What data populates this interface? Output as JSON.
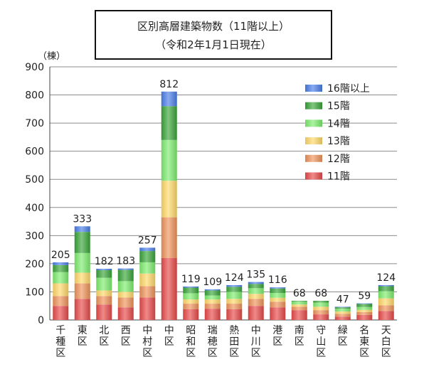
{
  "chart_data": {
    "type": "bar",
    "stacked": true,
    "title": "区別高層建築物数（11階以上）",
    "subtitle": "（令和2年1月1日現在）",
    "ylabel": "（棟）",
    "ylim": [
      0,
      900
    ],
    "yticks": [
      0,
      100,
      200,
      300,
      400,
      500,
      600,
      700,
      800,
      900
    ],
    "grid": true,
    "legend_position": "top-right",
    "categories": [
      "千種区",
      "東区",
      "北区",
      "西区",
      "中村区",
      "中区",
      "昭和区",
      "瑞穂区",
      "熱田区",
      "中川区",
      "港区",
      "南区",
      "守山区",
      "緑区",
      "名東区",
      "天白区"
    ],
    "totals": [
      205,
      333,
      182,
      183,
      257,
      812,
      119,
      109,
      124,
      135,
      116,
      68,
      68,
      47,
      59,
      124
    ],
    "series": [
      {
        "name": "11階",
        "color": "#e84a4a",
        "values": [
          50,
          75,
          55,
          45,
          80,
          220,
          38,
          40,
          38,
          50,
          45,
          35,
          20,
          12,
          18,
          32
        ]
      },
      {
        "name": "12階",
        "color": "#ef935a",
        "values": [
          35,
          55,
          30,
          35,
          40,
          145,
          20,
          18,
          20,
          25,
          20,
          12,
          15,
          10,
          10,
          20
        ]
      },
      {
        "name": "13階",
        "color": "#ffd96a",
        "values": [
          45,
          38,
          20,
          20,
          45,
          130,
          15,
          15,
          17,
          18,
          14,
          8,
          12,
          8,
          8,
          25
        ]
      },
      {
        "name": "14階",
        "color": "#7ded6e",
        "values": [
          40,
          70,
          45,
          38,
          40,
          145,
          22,
          14,
          25,
          20,
          17,
          10,
          15,
          10,
          10,
          25
        ]
      },
      {
        "name": "15階",
        "color": "#3aa53a",
        "values": [
          25,
          75,
          27,
          40,
          40,
          120,
          20,
          18,
          18,
          15,
          16,
          3,
          6,
          5,
          11,
          18
        ]
      },
      {
        "name": "16階以上",
        "color": "#4a7de8",
        "values": [
          10,
          20,
          5,
          5,
          12,
          52,
          4,
          4,
          6,
          7,
          4,
          0,
          0,
          2,
          2,
          4
        ]
      }
    ]
  }
}
